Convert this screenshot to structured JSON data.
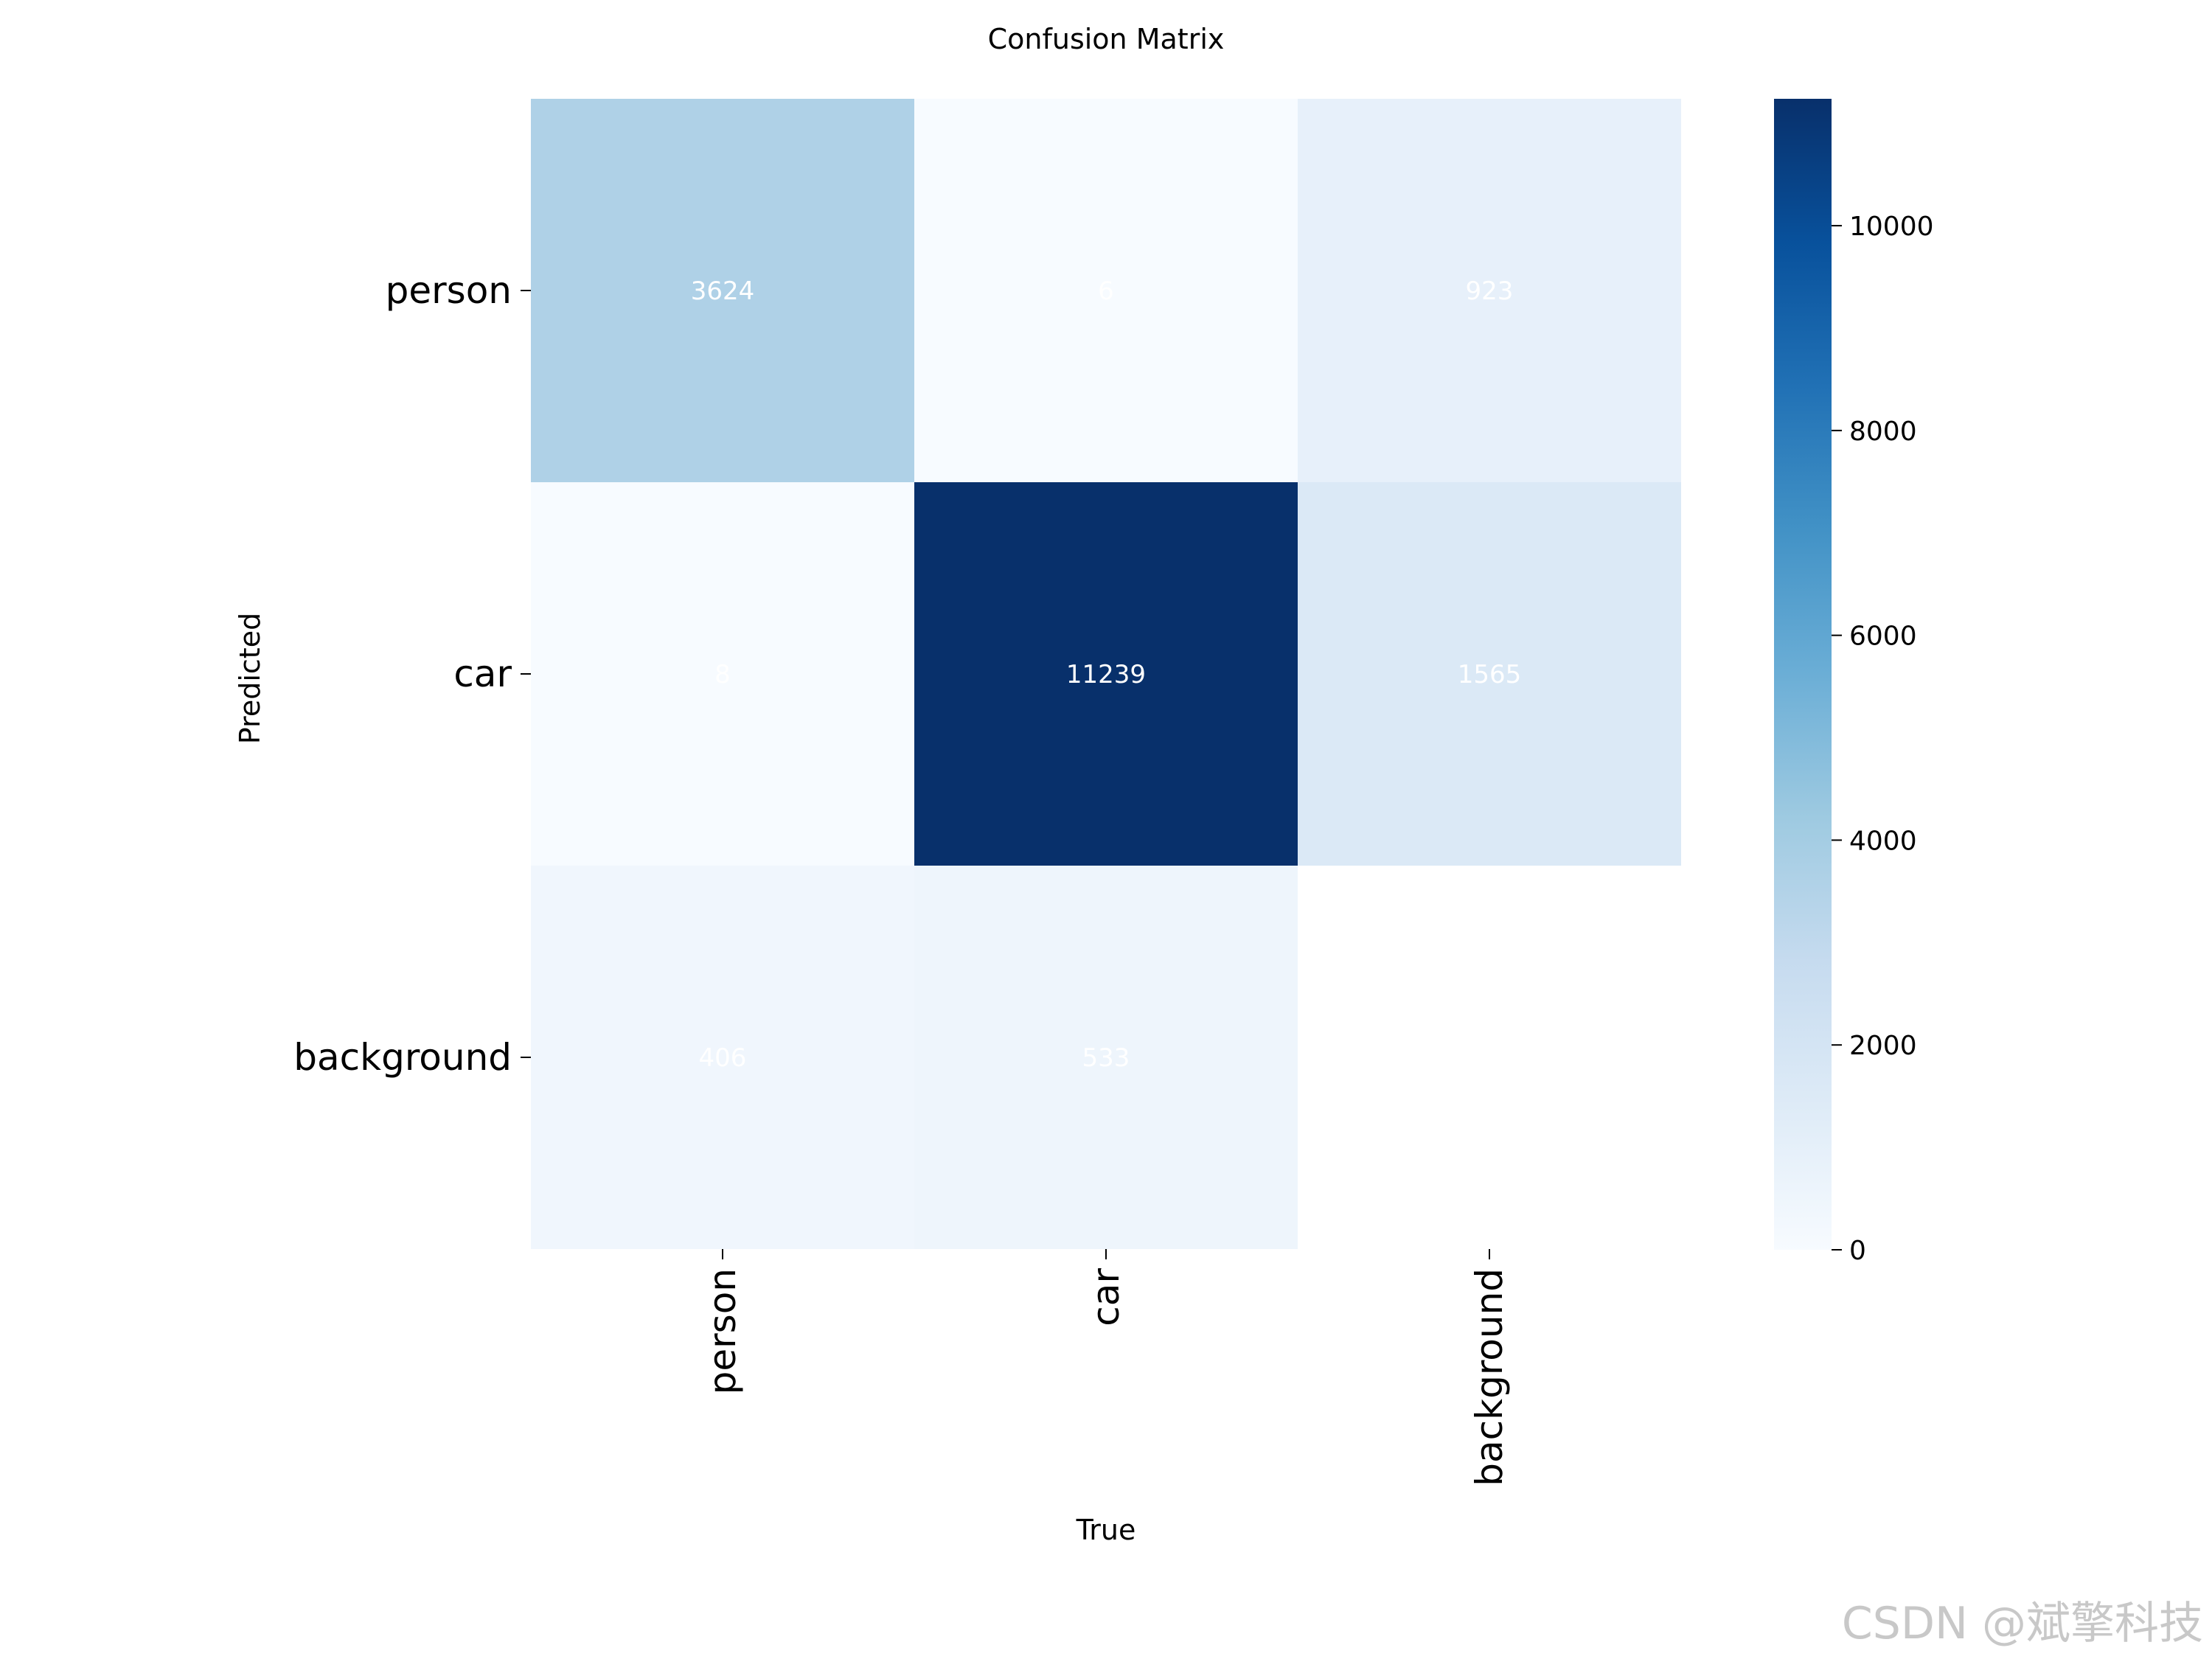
{
  "chart_data": {
    "type": "heatmap",
    "title": "Confusion Matrix",
    "xlabel": "True",
    "ylabel": "Predicted",
    "x_categories": [
      "person",
      "car",
      "background"
    ],
    "y_categories": [
      "person",
      "car",
      "background"
    ],
    "values": [
      [
        3624,
        6,
        923
      ],
      [
        8,
        11239,
        1565
      ],
      [
        406,
        533,
        null
      ]
    ],
    "colormap": "Blues",
    "colorbar": {
      "range": [
        0,
        11239
      ],
      "ticks": [
        0,
        2000,
        4000,
        6000,
        8000,
        10000
      ]
    },
    "cell_text_color": "#ffffff"
  },
  "watermark": "CSDN @斌擎科技"
}
